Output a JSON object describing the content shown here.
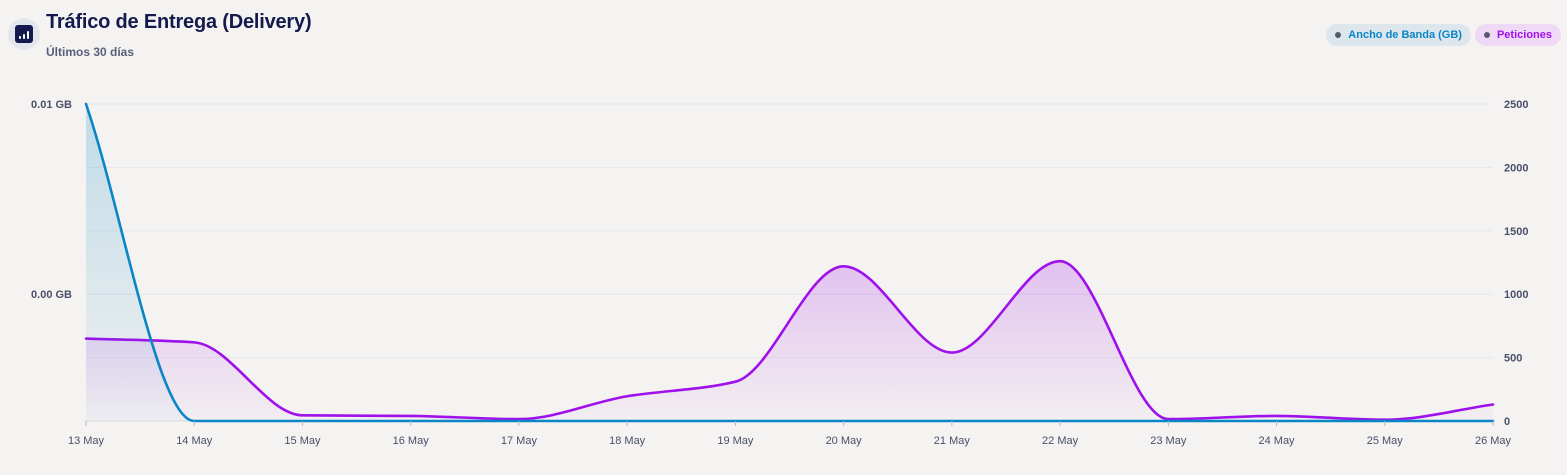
{
  "header": {
    "icon": "bar-chart-icon",
    "title": "Tráfico de Entrega (Delivery)",
    "subtitle": "Últimos 30 días"
  },
  "legend": [
    {
      "label": "Ancho de Banda (GB)",
      "color": "#0a86c7",
      "background": "#dce6ec"
    },
    {
      "label": "Peticiones",
      "color": "#a010ea",
      "background": "#f0d9f7"
    }
  ],
  "chart_data": {
    "type": "area",
    "categories": [
      "13 May",
      "14 May",
      "15 May",
      "16 May",
      "17 May",
      "18 May",
      "19 May",
      "20 May",
      "21 May",
      "22 May",
      "23 May",
      "24 May",
      "25 May",
      "26 May"
    ],
    "series": [
      {
        "name": "Ancho de Banda (GB)",
        "axis": "left",
        "color": "#0a86c7",
        "values": [
          0.01,
          0,
          0,
          0,
          0,
          0,
          0,
          0,
          0,
          0,
          0,
          0,
          0,
          0
        ]
      },
      {
        "name": "Peticiones",
        "axis": "right",
        "color": "#a010ea",
        "values": [
          650,
          620,
          45,
          40,
          15,
          195,
          310,
          1220,
          540,
          1260,
          15,
          40,
          10,
          130
        ]
      }
    ],
    "y_left": {
      "ylim": [
        0,
        0.01
      ],
      "tick_labels": [
        "0.01 GB",
        "0.00 GB"
      ],
      "tick_values": [
        0.01,
        0.004
      ]
    },
    "y_right": {
      "ylim": [
        0,
        2500
      ],
      "ticks": [
        0,
        500,
        1000,
        1500,
        2000,
        2500
      ]
    },
    "grid": true
  }
}
